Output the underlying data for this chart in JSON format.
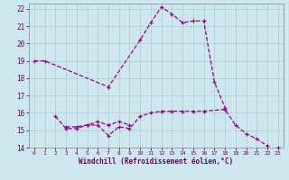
{
  "xlabel": "Windchill (Refroidissement éolien,°C)",
  "ylabel": "",
  "background_color": "#cce8ee",
  "grid_color": "#aacccc",
  "line_color": "#990099",
  "xlim": [
    -0.5,
    23.5
  ],
  "ylim": [
    14,
    22.3
  ],
  "xticks": [
    0,
    1,
    2,
    3,
    4,
    5,
    6,
    7,
    8,
    9,
    10,
    11,
    12,
    13,
    14,
    15,
    16,
    17,
    18,
    19,
    20,
    21,
    22,
    23
  ],
  "yticks": [
    14,
    15,
    16,
    17,
    18,
    19,
    20,
    21,
    22
  ],
  "series": [
    {
      "x": [
        0,
        1,
        7,
        10,
        11,
        12,
        13,
        14,
        15,
        16,
        17,
        18
      ],
      "y": [
        19,
        19,
        17.5,
        20.2,
        21.2,
        22.1,
        21.7,
        21.2,
        21.3,
        21.3,
        17.8,
        16.3
      ]
    },
    {
      "x": [
        2,
        3,
        4,
        5,
        6,
        7,
        8,
        9,
        10,
        11,
        12,
        13,
        14,
        15,
        16,
        18,
        19,
        20,
        21,
        22
      ],
      "y": [
        15.8,
        15.1,
        15.1,
        15.3,
        15.3,
        14.7,
        15.2,
        15.1,
        15.8,
        16.0,
        16.1,
        16.1,
        16.1,
        16.1,
        16.1,
        16.2,
        15.3,
        14.8,
        14.5,
        14.1
      ]
    },
    {
      "x": [
        3,
        4,
        5,
        6,
        7,
        8,
        9
      ],
      "y": [
        15.2,
        15.2,
        15.3,
        15.5,
        15.3,
        15.5,
        15.3
      ]
    },
    {
      "x": [
        23
      ],
      "y": [
        14.0
      ]
    }
  ]
}
